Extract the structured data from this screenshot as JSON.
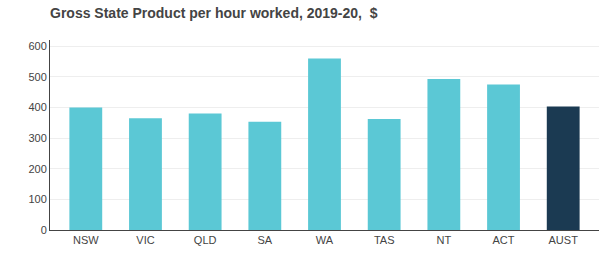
{
  "chart_data": {
    "type": "bar",
    "title": "Gross State Product per hour worked, 2019-20,  $",
    "categories": [
      "NSW",
      "VIC",
      "QLD",
      "SA",
      "WA",
      "TAS",
      "NT",
      "ACT",
      "AUST"
    ],
    "values": [
      400,
      365,
      380,
      353,
      560,
      362,
      493,
      475,
      403
    ],
    "colors": [
      "#5BC8D5",
      "#5BC8D5",
      "#5BC8D5",
      "#5BC8D5",
      "#5BC8D5",
      "#5BC8D5",
      "#5BC8D5",
      "#5BC8D5",
      "#1B3A52"
    ],
    "ylim": [
      0,
      620
    ],
    "yticks": [
      0,
      100,
      200,
      300,
      400,
      500,
      600
    ],
    "grid": true
  }
}
